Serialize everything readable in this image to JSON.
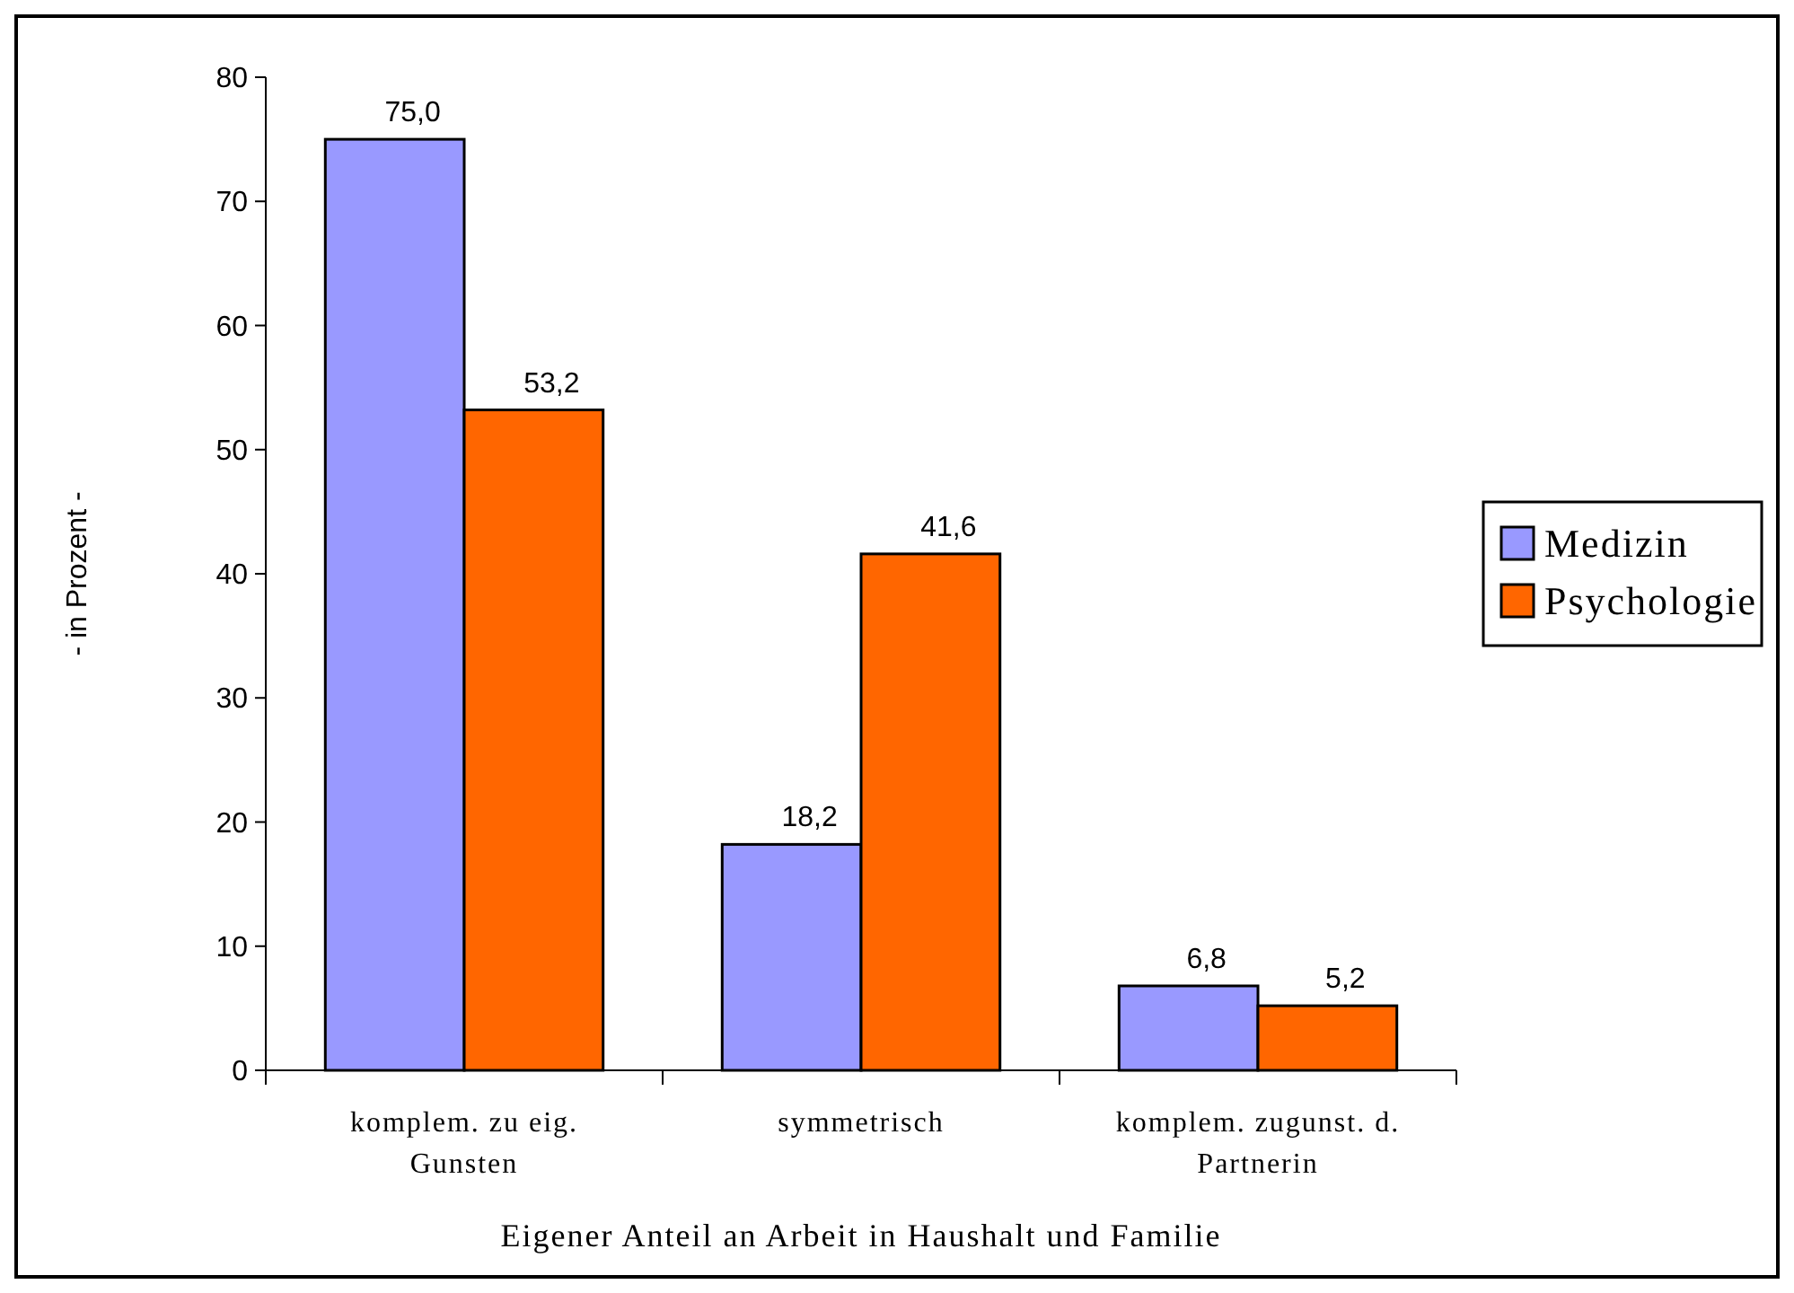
{
  "chart_data": {
    "type": "bar",
    "xlabel": "Eigener Anteil an Arbeit in Haushalt und Familie",
    "ylabel": "- in Prozent -",
    "categories": [
      "komplem. zu eig. Gunsten",
      "symmetrisch",
      "komplem. zugunst. d. Partnerin"
    ],
    "series": [
      {
        "name": "Medizin",
        "color": "#9999ff",
        "values": [
          75.0,
          18.2,
          6.8
        ],
        "value_labels": [
          "75,0",
          "18,2",
          "6,8"
        ]
      },
      {
        "name": "Psychologie",
        "color": "#ff6600",
        "values": [
          53.2,
          41.6,
          5.2
        ],
        "value_labels": [
          "53,2",
          "41,6",
          "5,2"
        ]
      }
    ],
    "ylim": [
      0,
      80
    ],
    "yticks": [
      0,
      10,
      20,
      30,
      40,
      50,
      60,
      70,
      80
    ],
    "legend": "right",
    "grid": false
  }
}
